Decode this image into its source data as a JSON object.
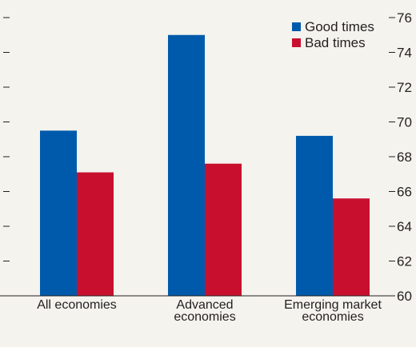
{
  "chart_data": {
    "type": "bar",
    "categories": [
      [
        "All economies"
      ],
      [
        "Advanced",
        "economies"
      ],
      [
        "Emerging market",
        "economies"
      ]
    ],
    "series": [
      {
        "name": "Good times",
        "color": "#005aab",
        "values": [
          69.5,
          75.0,
          69.2
        ]
      },
      {
        "name": "Bad times",
        "color": "#c8102e",
        "values": [
          67.1,
          67.6,
          65.6
        ]
      }
    ],
    "ylim": [
      60,
      76
    ],
    "yticks": [
      60,
      62,
      64,
      66,
      68,
      70,
      72,
      74,
      76
    ],
    "y_axis_side": "right",
    "grid": false,
    "legend_position": "top-right",
    "title": "",
    "xlabel": "",
    "ylabel": ""
  }
}
